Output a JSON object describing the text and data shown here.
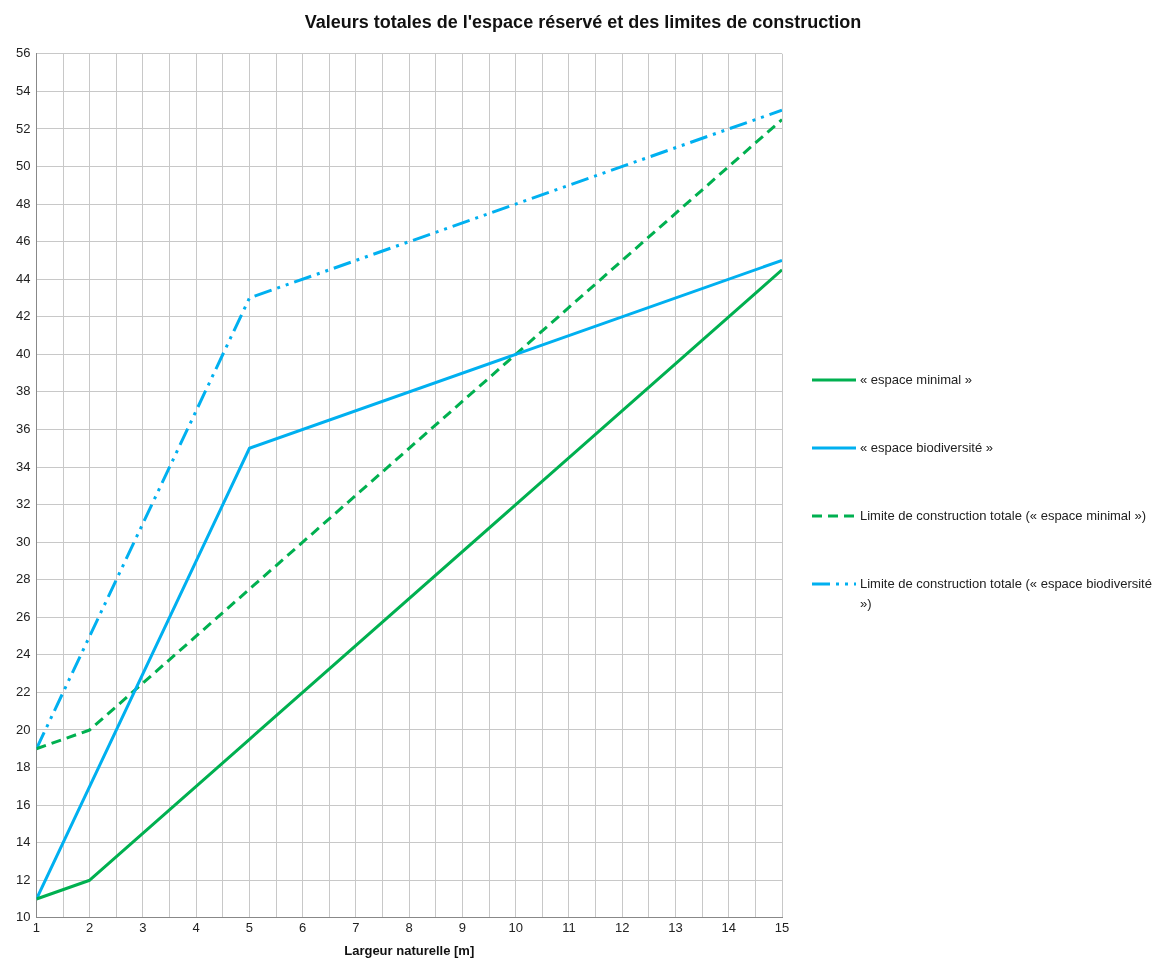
{
  "chart_data": {
    "type": "line",
    "title": "Valeurs totales de l'espace réservé et des limites de construction",
    "xlabel": "Largeur naturelle [m]",
    "xlim": [
      1,
      15
    ],
    "xticks": [
      1,
      {
        "value": 1.5,
        "label": null
      },
      2,
      {
        "value": 2.5,
        "label": null
      },
      3,
      {
        "value": 3.5,
        "label": null
      },
      4,
      {
        "value": 4.5,
        "label": null
      },
      5,
      {
        "value": 5.5,
        "label": null
      },
      6,
      {
        "value": 6.5,
        "label": null
      },
      7,
      {
        "value": 7.5,
        "label": null
      },
      8,
      {
        "value": 8.5,
        "label": null
      },
      9,
      {
        "value": 9.5,
        "label": null
      },
      10,
      {
        "value": 10.5,
        "label": null
      },
      11,
      {
        "value": 11.5,
        "label": null
      },
      12,
      {
        "value": 12.5,
        "label": null
      },
      13,
      {
        "value": 13.5,
        "label": null
      },
      14,
      {
        "value": 14.5,
        "label": null
      },
      15
    ],
    "ylim": [
      10,
      56
    ],
    "yticks": [
      10,
      12,
      14,
      16,
      18,
      20,
      22,
      24,
      26,
      28,
      30,
      32,
      34,
      36,
      38,
      40,
      42,
      44,
      46,
      48,
      50,
      52,
      54,
      56
    ],
    "grid": true,
    "legend": "right",
    "marker": "none",
    "series": [
      {
        "name": "« espace minimal »",
        "color": "#00b050",
        "line_style": "solid",
        "x": [
          1,
          2,
          5,
          10,
          15
        ],
        "values": [
          11,
          12,
          19.5,
          32,
          44.5
        ]
      },
      {
        "name": "« espace biodiversité »",
        "color": "#00b0f0",
        "line_style": "solid",
        "x": [
          1,
          5,
          10,
          15
        ],
        "values": [
          11,
          35,
          40,
          45
        ]
      },
      {
        "name": "Limite de construction totale (« espace minimal »)",
        "color": "#00b050",
        "line_style": "dashed",
        "x": [
          1,
          2,
          5,
          10,
          15
        ],
        "values": [
          19,
          20,
          27.5,
          40,
          52.5
        ]
      },
      {
        "name": "Limite de construction totale (« espace biodiversité »)",
        "color": "#00b0f0",
        "line_style": "dashdot",
        "x": [
          1,
          2,
          5,
          10,
          15
        ],
        "values": [
          19,
          25,
          43,
          48,
          53
        ]
      }
    ]
  }
}
